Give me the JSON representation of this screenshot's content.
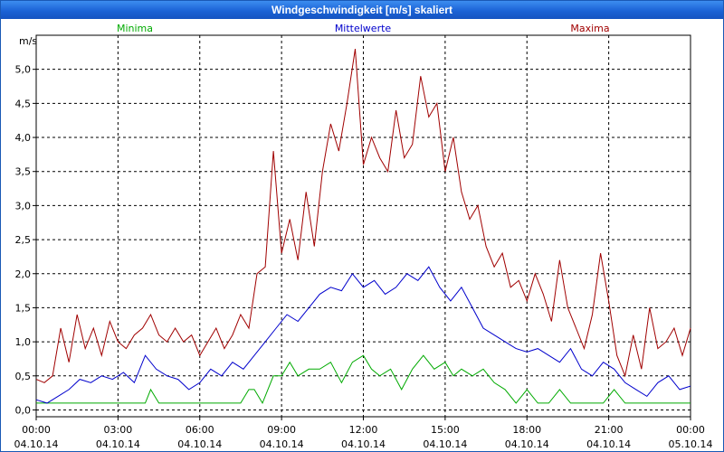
{
  "window": {
    "title": "Windgeschwindigkeit [m/s] skaliert"
  },
  "chart_data": {
    "type": "line",
    "title": "Windgeschwindigkeit [m/s] skaliert",
    "ylabel": "m/s",
    "xlabel": "",
    "ylim": [
      -0.1,
      5.5
    ],
    "xlim": [
      0,
      24
    ],
    "grid": true,
    "legend_position": "top",
    "y_ticks": [
      "0,0",
      "0,5",
      "1,0",
      "1,5",
      "2,0",
      "2,5",
      "3,0",
      "3,5",
      "4,0",
      "4,5",
      "5,0"
    ],
    "y_tick_values": [
      0,
      0.5,
      1,
      1.5,
      2,
      2.5,
      3,
      3.5,
      4,
      4.5,
      5
    ],
    "x_ticks": [
      {
        "time": "00:00",
        "date": "04.10.14"
      },
      {
        "time": "03:00",
        "date": "04.10.14"
      },
      {
        "time": "06:00",
        "date": "04.10.14"
      },
      {
        "time": "09:00",
        "date": "04.10.14"
      },
      {
        "time": "12:00",
        "date": "04.10.14"
      },
      {
        "time": "15:00",
        "date": "04.10.14"
      },
      {
        "time": "18:00",
        "date": "04.10.14"
      },
      {
        "time": "21:00",
        "date": "04.10.14"
      },
      {
        "time": "00:00",
        "date": "05.10.14"
      }
    ],
    "x_tick_values": [
      0,
      3,
      6,
      9,
      12,
      15,
      18,
      21,
      24
    ],
    "series": [
      {
        "name": "Minima",
        "color": "#00aa00",
        "x": [
          0,
          4,
          4.2,
          4.5,
          6,
          7.5,
          7.8,
          8,
          8.3,
          8.7,
          9,
          9.3,
          9.6,
          10,
          10.4,
          10.8,
          11.2,
          11.6,
          12,
          12.3,
          12.6,
          13,
          13.4,
          13.8,
          14.2,
          14.6,
          15,
          15.3,
          15.6,
          16,
          16.4,
          16.8,
          17.2,
          17.6,
          18,
          18.4,
          18.8,
          19.2,
          19.6,
          20,
          20.4,
          20.8,
          21.2,
          21.6,
          22,
          22.4,
          22.8,
          23.2,
          23.6,
          24
        ],
        "values": [
          0.1,
          0.1,
          0.3,
          0.1,
          0.1,
          0.1,
          0.3,
          0.3,
          0.1,
          0.5,
          0.5,
          0.7,
          0.5,
          0.6,
          0.6,
          0.7,
          0.4,
          0.7,
          0.8,
          0.6,
          0.5,
          0.6,
          0.3,
          0.6,
          0.8,
          0.6,
          0.7,
          0.5,
          0.6,
          0.5,
          0.6,
          0.4,
          0.3,
          0.1,
          0.3,
          0.1,
          0.1,
          0.3,
          0.1,
          0.1,
          0.1,
          0.1,
          0.3,
          0.1,
          0.1,
          0.1,
          0.1,
          0.1,
          0.1,
          0.1
        ]
      },
      {
        "name": "Mittelwerte",
        "color": "#0000cc",
        "x": [
          0,
          0.4,
          0.8,
          1.2,
          1.6,
          2,
          2.4,
          2.8,
          3.2,
          3.6,
          4,
          4.4,
          4.8,
          5.2,
          5.6,
          6,
          6.4,
          6.8,
          7.2,
          7.6,
          8,
          8.4,
          8.8,
          9.2,
          9.6,
          10,
          10.4,
          10.8,
          11.2,
          11.6,
          12,
          12.4,
          12.8,
          13.2,
          13.6,
          14,
          14.4,
          14.8,
          15.2,
          15.6,
          16,
          16.4,
          16.8,
          17.2,
          17.6,
          18,
          18.4,
          18.8,
          19.2,
          19.6,
          20,
          20.4,
          20.8,
          21.2,
          21.6,
          22,
          22.4,
          22.8,
          23.2,
          23.6,
          24
        ],
        "values": [
          0.15,
          0.1,
          0.2,
          0.3,
          0.45,
          0.4,
          0.5,
          0.45,
          0.55,
          0.4,
          0.8,
          0.6,
          0.5,
          0.45,
          0.3,
          0.4,
          0.6,
          0.5,
          0.7,
          0.6,
          0.8,
          1.0,
          1.2,
          1.4,
          1.3,
          1.5,
          1.7,
          1.8,
          1.75,
          2.0,
          1.8,
          1.9,
          1.7,
          1.8,
          2.0,
          1.9,
          2.1,
          1.8,
          1.6,
          1.8,
          1.5,
          1.2,
          1.1,
          1.0,
          0.9,
          0.85,
          0.9,
          0.8,
          0.7,
          0.9,
          0.6,
          0.5,
          0.7,
          0.6,
          0.4,
          0.3,
          0.2,
          0.4,
          0.5,
          0.3,
          0.35
        ]
      },
      {
        "name": "Maxima",
        "color": "#a00000",
        "x": [
          0,
          0.3,
          0.6,
          0.9,
          1.2,
          1.5,
          1.8,
          2.1,
          2.4,
          2.7,
          3,
          3.3,
          3.6,
          3.9,
          4.2,
          4.5,
          4.8,
          5.1,
          5.4,
          5.7,
          6,
          6.3,
          6.6,
          6.9,
          7.2,
          7.5,
          7.8,
          8.1,
          8.4,
          8.7,
          9,
          9.3,
          9.6,
          9.9,
          10.2,
          10.5,
          10.8,
          11.1,
          11.4,
          11.7,
          12,
          12.3,
          12.6,
          12.9,
          13.2,
          13.5,
          13.8,
          14.1,
          14.4,
          14.7,
          15,
          15.3,
          15.6,
          15.9,
          16.2,
          16.5,
          16.8,
          17.1,
          17.4,
          17.7,
          18,
          18.3,
          18.6,
          18.9,
          19.2,
          19.5,
          19.8,
          20.1,
          20.4,
          20.7,
          21,
          21.3,
          21.6,
          21.9,
          22.2,
          22.5,
          22.8,
          23.1,
          23.4,
          23.7,
          24
        ],
        "values": [
          0.45,
          0.4,
          0.5,
          1.2,
          0.7,
          1.4,
          0.9,
          1.2,
          0.8,
          1.3,
          1.0,
          0.9,
          1.1,
          1.2,
          1.4,
          1.1,
          1.0,
          1.2,
          1.0,
          1.1,
          0.8,
          1.0,
          1.2,
          0.9,
          1.1,
          1.4,
          1.2,
          2.0,
          2.1,
          3.8,
          2.3,
          2.8,
          2.2,
          3.2,
          2.4,
          3.5,
          4.2,
          3.8,
          4.5,
          5.3,
          3.6,
          4.0,
          3.7,
          3.5,
          4.4,
          3.7,
          3.9,
          4.9,
          4.3,
          4.5,
          3.5,
          4.0,
          3.2,
          2.8,
          3.0,
          2.4,
          2.1,
          2.3,
          1.8,
          1.9,
          1.6,
          2.0,
          1.7,
          1.3,
          2.2,
          1.5,
          1.2,
          0.9,
          1.4,
          2.3,
          1.6,
          0.8,
          0.5,
          1.1,
          0.6,
          1.5,
          0.9,
          1.0,
          1.2,
          0.8,
          1.2
        ]
      }
    ]
  }
}
